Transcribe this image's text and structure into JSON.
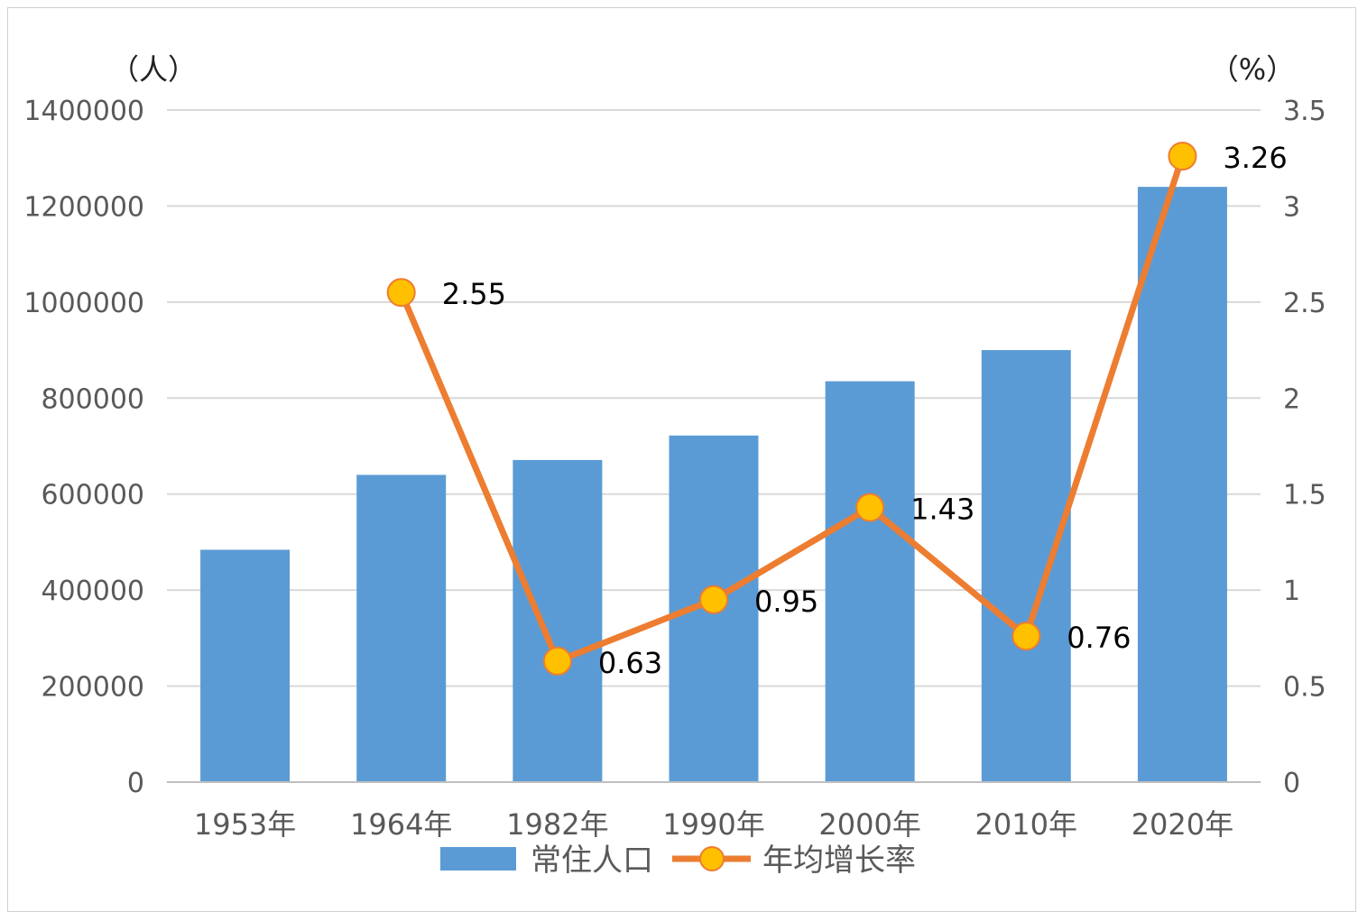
{
  "chart_data": {
    "type": "bar",
    "categories": [
      "1953年",
      "1964年",
      "1982年",
      "1990年",
      "2000年",
      "2010年",
      "2020年"
    ],
    "series": [
      {
        "name": "常住人口",
        "type": "bar",
        "axis": "left",
        "color": "#5B9BD5",
        "values": [
          484000,
          640000,
          671000,
          722000,
          835000,
          900000,
          1240000
        ]
      },
      {
        "name": "年均增长率",
        "type": "line",
        "axis": "right",
        "color": "#ED7D31",
        "marker_color": "#FFC000",
        "values": [
          null,
          2.55,
          0.63,
          0.95,
          1.43,
          0.76,
          3.26
        ],
        "labels": [
          "",
          "2.55",
          "0.63",
          "0.95",
          "1.43",
          "0.76",
          "3.26"
        ]
      }
    ],
    "y_left": {
      "unit": "（人）",
      "ylim": [
        0,
        1400000
      ],
      "ticks": [
        "0",
        "200000",
        "400000",
        "600000",
        "800000",
        "1000000",
        "1200000",
        "1400000"
      ]
    },
    "y_right": {
      "unit": "（%）",
      "ylim": [
        0,
        3.5
      ],
      "ticks": [
        "0",
        "0.5",
        "1",
        "1.5",
        "2",
        "2.5",
        "3",
        "3.5"
      ]
    },
    "grid": true,
    "legend": "bottom"
  }
}
